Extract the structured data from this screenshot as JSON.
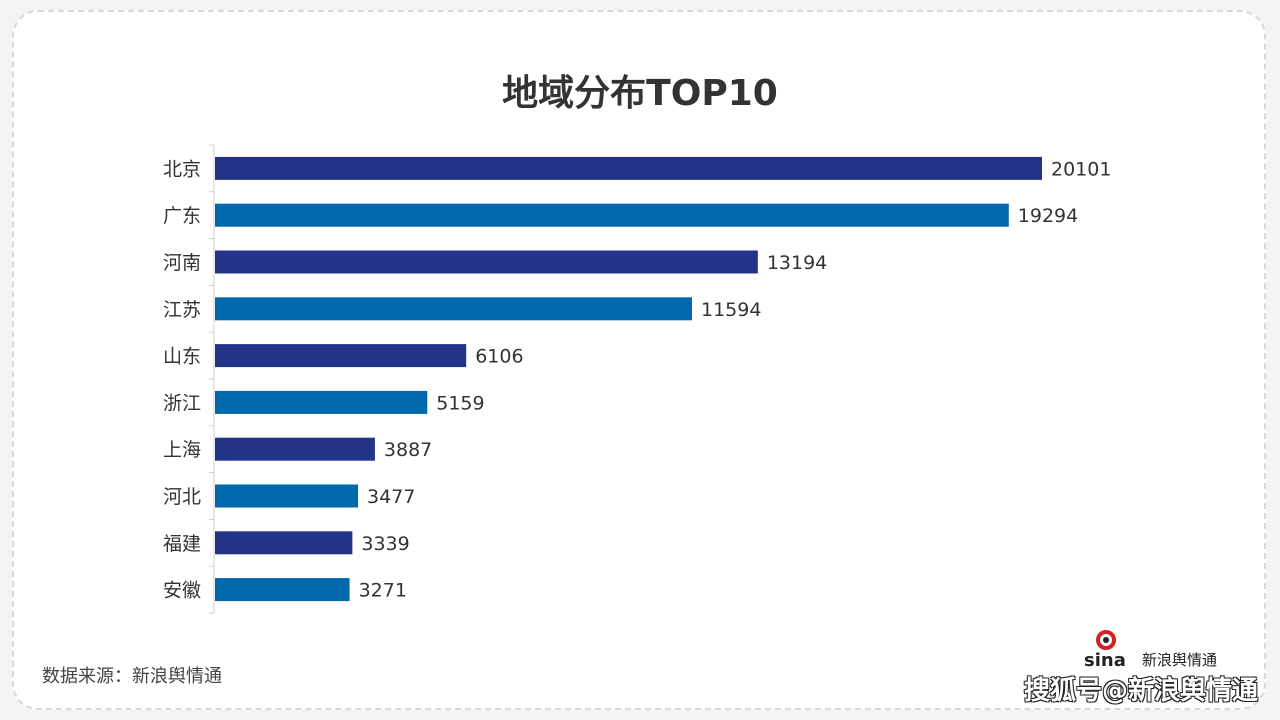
{
  "chart_data": {
    "type": "bar",
    "orientation": "horizontal",
    "title": "地域分布TOP10",
    "categories": [
      "北京",
      "广东",
      "河南",
      "江苏",
      "山东",
      "浙江",
      "上海",
      "河北",
      "福建",
      "安徽"
    ],
    "values": [
      20101,
      19294,
      13194,
      11594,
      6106,
      5159,
      3887,
      3477,
      3339,
      3271
    ],
    "colors": [
      "#233488",
      "#0068ac"
    ],
    "data_labels": true,
    "grid": false,
    "xlim": [
      0,
      20101
    ]
  },
  "footer": {
    "source": "数据来源：新浪舆情通",
    "watermark": "搜狐号@新浪舆情通",
    "logo_text": "sina 新浪舆情通"
  }
}
